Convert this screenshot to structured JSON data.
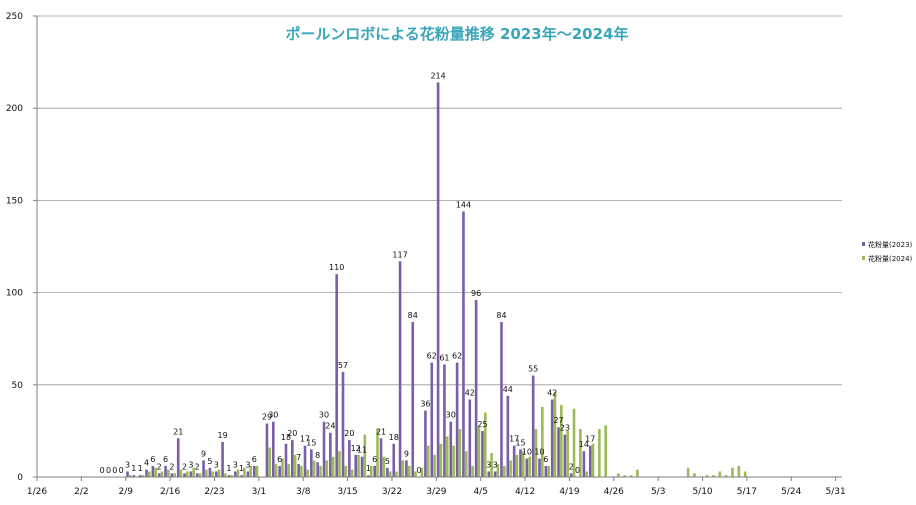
{
  "chart_data": {
    "type": "bar",
    "title": "ポールンロボによる花粉量推移 2023年〜2024年",
    "xlabel": "",
    "ylabel": "",
    "ylim": [
      0,
      250
    ],
    "yticks": [
      0,
      50,
      100,
      150,
      200,
      250
    ],
    "grid": true,
    "legend_position": "right",
    "x_start": "1/26",
    "x_tick_labels": [
      "1/26",
      "2/2",
      "2/9",
      "2/16",
      "2/23",
      "3/1",
      "3/8",
      "3/15",
      "3/22",
      "3/29",
      "4/5",
      "4/12",
      "4/19",
      "4/26",
      "5/3",
      "5/10",
      "5/17",
      "5/24",
      "5/31"
    ],
    "colors": {
      "2023": "#7b5ea6",
      "2024": "#9bbb59",
      "grid": "#9a9a9a",
      "axis": "#7f7f7f"
    },
    "series": [
      {
        "name": "花粉量(2023)",
        "values": [
          0,
          0,
          0,
          0,
          0,
          0,
          0,
          0,
          0,
          0,
          0,
          0,
          0,
          0,
          3,
          1,
          1,
          4,
          6,
          2,
          6,
          2,
          21,
          2,
          3,
          2,
          9,
          5,
          3,
          19,
          1,
          3,
          1,
          3,
          6,
          0,
          29,
          30,
          6,
          18,
          20,
          7,
          17,
          15,
          8,
          30,
          24,
          110,
          57,
          20,
          12,
          11,
          1,
          6,
          21,
          5,
          18,
          117,
          9,
          84,
          0,
          36,
          62,
          214,
          61,
          30,
          62,
          144,
          42,
          96,
          25,
          3,
          3,
          84,
          44,
          17,
          15,
          10,
          55,
          10,
          6,
          42,
          27,
          23,
          2,
          0,
          14,
          17,
          0,
          0,
          0,
          0,
          0,
          0,
          0,
          0,
          0,
          0,
          0,
          0,
          0,
          0,
          0,
          0,
          0,
          0,
          0,
          0,
          0,
          0,
          0,
          0,
          0,
          0,
          0,
          0,
          0,
          0,
          0,
          0,
          0,
          0,
          0,
          0,
          0,
          0,
          0,
          0,
          0
        ],
        "labels_shown": [
          false,
          false,
          false,
          false,
          false,
          false,
          false,
          false,
          false,
          false,
          true,
          true,
          true,
          true,
          true,
          true,
          true,
          true,
          true,
          true,
          true,
          true,
          true,
          true,
          true,
          true,
          true,
          true,
          true,
          true,
          true,
          true,
          true,
          true,
          true,
          false,
          true,
          true,
          true,
          true,
          true,
          true,
          true,
          true,
          true,
          true,
          true,
          true,
          true,
          true,
          true,
          true,
          true,
          true,
          true,
          true,
          true,
          true,
          true,
          true,
          true,
          true,
          true,
          true,
          true,
          true,
          true,
          true,
          true,
          true,
          true,
          true,
          true,
          true,
          true,
          true,
          true,
          true,
          true,
          true,
          true,
          true,
          true,
          true,
          true,
          true,
          true,
          true,
          false,
          false,
          false,
          false,
          false,
          false,
          false,
          false,
          false,
          false,
          false,
          false,
          false,
          false,
          false,
          false,
          false,
          false,
          false,
          false,
          false,
          false,
          false,
          false,
          false,
          false,
          false,
          false,
          false,
          false,
          false,
          false,
          false,
          false,
          false,
          false,
          false,
          false,
          false,
          false,
          false
        ]
      },
      {
        "name": "花粉量(2024)",
        "values": [
          0,
          0,
          0,
          0,
          0,
          0,
          0,
          0,
          0,
          0,
          0,
          0,
          0,
          0,
          1,
          0,
          1,
          3,
          5,
          3,
          4,
          2,
          4,
          3,
          5,
          2,
          4,
          3,
          4,
          2,
          1,
          4,
          5,
          6,
          6,
          0,
          16,
          7,
          10,
          7,
          12,
          6,
          4,
          9,
          6,
          9,
          11,
          14,
          6,
          4,
          12,
          23,
          6,
          26,
          11,
          3,
          3,
          9,
          6,
          3,
          5,
          17,
          12,
          18,
          22,
          17,
          26,
          14,
          6,
          27,
          35,
          13,
          7,
          6,
          9,
          12,
          14,
          11,
          26,
          38,
          6,
          46,
          39,
          25,
          37,
          26,
          3,
          18,
          26,
          28,
          0,
          2,
          1,
          1,
          4,
          0,
          0,
          0,
          0,
          0,
          0,
          0,
          5,
          2,
          0,
          1,
          1,
          3,
          1,
          5,
          6,
          3,
          0,
          0,
          0,
          0,
          0,
          0,
          0,
          0,
          0,
          0,
          0,
          0,
          0,
          0,
          0,
          0,
          0
        ]
      }
    ]
  }
}
